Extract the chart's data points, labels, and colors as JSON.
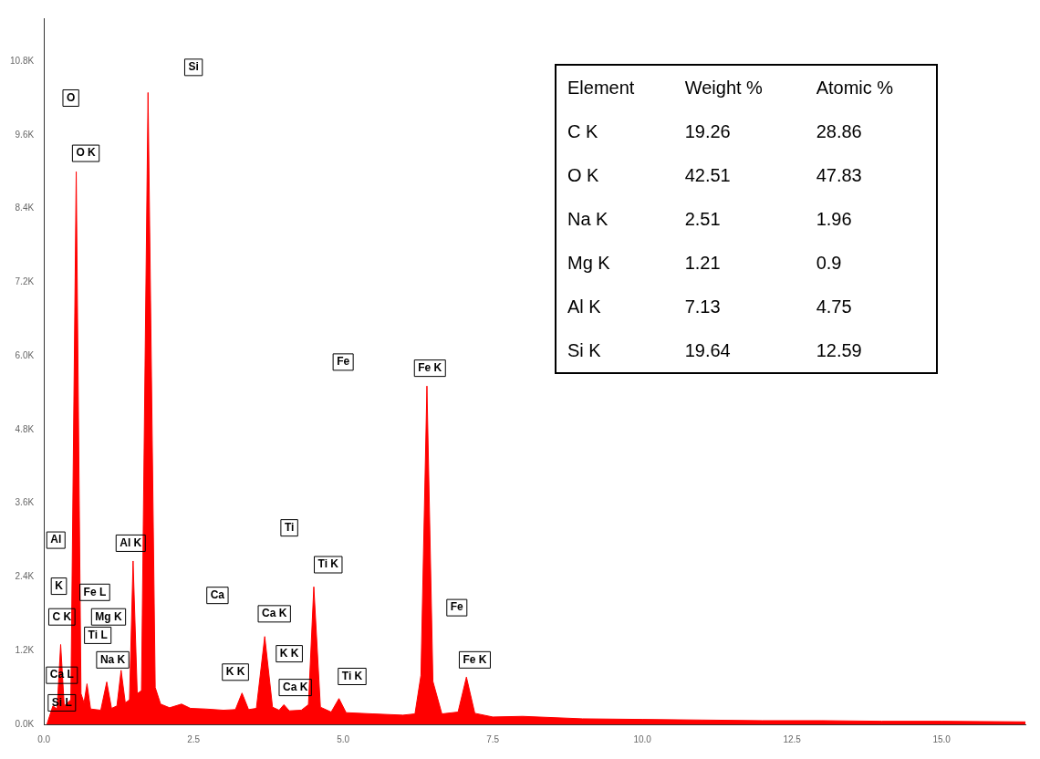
{
  "chart_data": {
    "type": "area",
    "color": "#ff0000",
    "grid": false,
    "x": [
      0.05,
      0.15,
      0.22,
      0.28,
      0.34,
      0.45,
      0.54,
      0.62,
      0.67,
      0.72,
      0.78,
      0.95,
      1.05,
      1.13,
      1.22,
      1.29,
      1.36,
      1.43,
      1.49,
      1.56,
      1.63,
      1.74,
      1.86,
      1.95,
      2.1,
      2.3,
      2.45,
      2.7,
      3.0,
      3.2,
      3.31,
      3.42,
      3.55,
      3.69,
      3.82,
      3.93,
      4.01,
      4.1,
      4.3,
      4.42,
      4.51,
      4.62,
      4.8,
      4.93,
      5.05,
      5.5,
      6.0,
      6.2,
      6.3,
      6.4,
      6.5,
      6.65,
      6.92,
      7.06,
      7.2,
      7.5,
      8.0,
      9.0,
      10.0,
      11.0,
      12.0,
      13.0,
      14.0,
      15.0,
      16.4
    ],
    "values": [
      0,
      300,
      250,
      1300,
      300,
      400,
      9000,
      500,
      350,
      660,
      250,
      230,
      690,
      260,
      300,
      880,
      350,
      400,
      2660,
      500,
      550,
      10290,
      600,
      330,
      270,
      330,
      260,
      250,
      230,
      240,
      510,
      240,
      260,
      1430,
      280,
      230,
      320,
      220,
      230,
      320,
      2240,
      280,
      200,
      420,
      190,
      170,
      150,
      170,
      800,
      5510,
      700,
      170,
      200,
      770,
      180,
      120,
      130,
      90,
      80,
      70,
      60,
      60,
      50,
      50,
      40
    ],
    "xlim": [
      0,
      16.4
    ],
    "xticks": [
      {
        "value": 0,
        "label": "0.0"
      },
      {
        "value": 2.5,
        "label": "2.5"
      },
      {
        "value": 5,
        "label": "5.0"
      },
      {
        "value": 7.5,
        "label": "7.5"
      },
      {
        "value": 10,
        "label": "10.0"
      },
      {
        "value": 12.5,
        "label": "12.5"
      },
      {
        "value": 15,
        "label": "15.0"
      }
    ],
    "ylim": [
      0,
      11500
    ],
    "yticks": [
      {
        "value": 0,
        "label": "0.0K"
      },
      {
        "value": 1200,
        "label": "1.2K"
      },
      {
        "value": 2400,
        "label": "2.4K"
      },
      {
        "value": 3600,
        "label": "3.6K"
      },
      {
        "value": 4800,
        "label": "4.8K"
      },
      {
        "value": 6000,
        "label": "6.0K"
      },
      {
        "value": 7200,
        "label": "7.2K"
      },
      {
        "value": 8400,
        "label": "8.4K"
      },
      {
        "value": 9600,
        "label": "9.6K"
      },
      {
        "value": 10800,
        "label": "10.8K"
      }
    ],
    "annotations": [
      {
        "text": "O",
        "x": 0.45,
        "y": 10200
      },
      {
        "text": "Si",
        "x": 2.5,
        "y": 10700
      },
      {
        "text": "Fe",
        "x": 5.0,
        "y": 5900
      },
      {
        "text": "Al",
        "x": 0.2,
        "y": 3000
      },
      {
        "text": "Ca",
        "x": 2.9,
        "y": 2100
      },
      {
        "text": "Ti",
        "x": 4.1,
        "y": 3200
      },
      {
        "text": "Fe",
        "x": 6.9,
        "y": 1900
      },
      {
        "text": "O K",
        "x": 0.7,
        "y": 9300
      },
      {
        "text": "Al K",
        "x": 1.45,
        "y": 2950
      },
      {
        "text": "Fe K",
        "x": 6.45,
        "y": 5800
      },
      {
        "text": "Fe K",
        "x": 7.2,
        "y": 1050
      },
      {
        "text": "Ti K",
        "x": 4.75,
        "y": 2600
      },
      {
        "text": "Ti K",
        "x": 5.15,
        "y": 780
      },
      {
        "text": "Ca K",
        "x": 3.85,
        "y": 1800
      },
      {
        "text": "Ca K",
        "x": 4.2,
        "y": 600
      },
      {
        "text": "K K",
        "x": 4.1,
        "y": 1150
      },
      {
        "text": "K K",
        "x": 3.2,
        "y": 850
      },
      {
        "text": "Mg K",
        "x": 1.08,
        "y": 1750
      },
      {
        "text": "Na K",
        "x": 1.15,
        "y": 1050
      },
      {
        "text": "Ca L",
        "x": 0.3,
        "y": 800
      },
      {
        "text": "Ti L",
        "x": 0.9,
        "y": 1450
      },
      {
        "text": "C K",
        "x": 0.3,
        "y": 1750
      },
      {
        "text": "K",
        "x": 0.25,
        "y": 2250
      },
      {
        "text": "Fe L",
        "x": 0.85,
        "y": 2150
      },
      {
        "text": "Si L",
        "x": 0.3,
        "y": 350
      },
      "Element",
      "Weight %",
      "Atomic %",
      "C  K",
      "19.26",
      "28.86",
      "O  K",
      "42.51",
      "47.83",
      "Na K",
      "2.51",
      "1.96",
      "Mg K",
      "1.21",
      "0.9",
      "Al K",
      "7.13",
      "4.75",
      "Si K",
      "19.64",
      "12.59"
    ]
  }
}
